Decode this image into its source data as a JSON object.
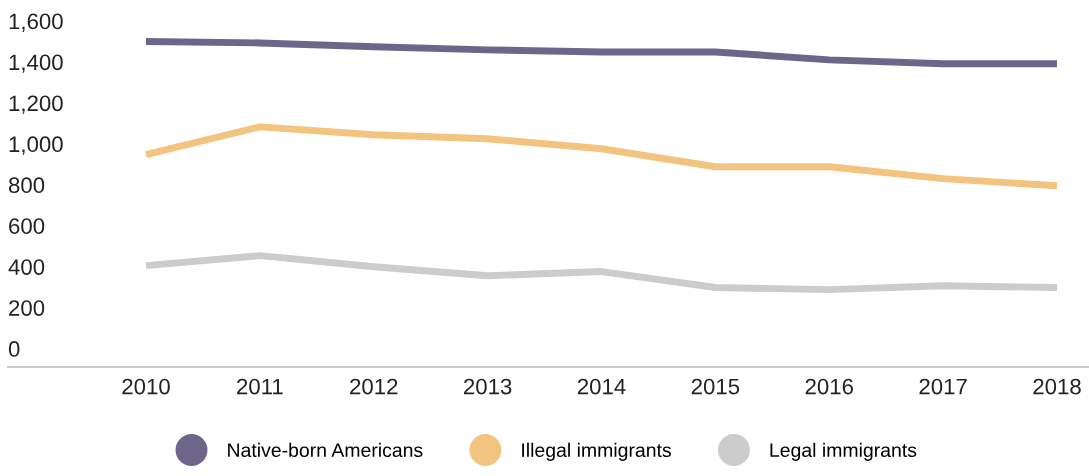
{
  "chart_data": {
    "type": "line",
    "categories": [
      "2010",
      "2011",
      "2012",
      "2013",
      "2014",
      "2015",
      "2016",
      "2017",
      "2018"
    ],
    "series": [
      {
        "name": "Native-born Americans",
        "color": "#6e668a",
        "values": [
          1500,
          1493,
          1474,
          1459,
          1449,
          1449,
          1410,
          1391,
          1391
        ]
      },
      {
        "name": "Illegal immigrants",
        "color": "#f2c47f",
        "values": [
          947,
          1083,
          1044,
          1025,
          976,
          888,
          888,
          830,
          795
        ]
      },
      {
        "name": "Legal immigrants",
        "color": "#cccccc",
        "values": [
          405,
          454,
          400,
          356,
          376,
          298,
          288,
          307,
          298
        ]
      }
    ],
    "ylim": [
      -90,
      1600
    ],
    "yticks": [
      {
        "value": 0,
        "label": "0"
      },
      {
        "value": 200,
        "label": "200"
      },
      {
        "value": 400,
        "label": "400"
      },
      {
        "value": 600,
        "label": "600"
      },
      {
        "value": 800,
        "label": "800"
      },
      {
        "value": 1000,
        "label": "1,000"
      },
      {
        "value": 1200,
        "label": "1,200"
      },
      {
        "value": 1400,
        "label": "1,400"
      },
      {
        "value": 1600,
        "label": "1,600"
      }
    ],
    "grid": false,
    "legend": "bottom",
    "marker": "none",
    "line_style": "solid"
  }
}
